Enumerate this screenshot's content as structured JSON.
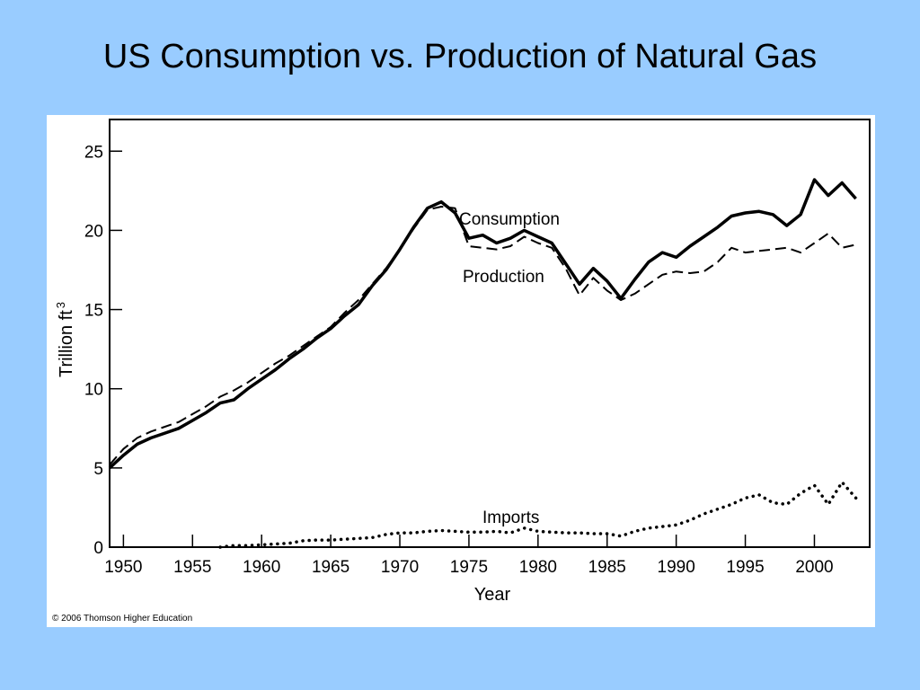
{
  "slide": {
    "title": "US Consumption vs. Production of Natural Gas"
  },
  "figure": {
    "copyright": "© 2006 Thomson Higher Education"
  },
  "chart_data": {
    "type": "line",
    "title": "",
    "xlabel": "Year",
    "ylabel": "Trillion ft",
    "ylabel_superscript": "3",
    "xlim": [
      1949,
      2004
    ],
    "ylim": [
      0,
      27
    ],
    "xticks": [
      1950,
      1955,
      1960,
      1965,
      1970,
      1975,
      1980,
      1985,
      1990,
      1995,
      2000
    ],
    "yticks": [
      0,
      5,
      10,
      15,
      20,
      25
    ],
    "grid": false,
    "legend": "inline labels",
    "series": [
      {
        "name": "Consumption",
        "style": "solid",
        "color": "#000000",
        "x": [
          1949,
          1950,
          1951,
          1952,
          1953,
          1954,
          1955,
          1956,
          1957,
          1958,
          1959,
          1960,
          1961,
          1962,
          1963,
          1964,
          1965,
          1966,
          1967,
          1968,
          1969,
          1970,
          1971,
          1972,
          1973,
          1974,
          1975,
          1976,
          1977,
          1978,
          1979,
          1980,
          1981,
          1982,
          1983,
          1984,
          1985,
          1986,
          1987,
          1988,
          1989,
          1990,
          1991,
          1992,
          1993,
          1994,
          1995,
          1996,
          1997,
          1998,
          1999,
          2000,
          2001,
          2002,
          2003
        ],
        "values": [
          5.0,
          5.8,
          6.5,
          6.9,
          7.2,
          7.5,
          8.0,
          8.5,
          9.1,
          9.3,
          10.0,
          10.6,
          11.2,
          11.9,
          12.5,
          13.2,
          13.8,
          14.6,
          15.3,
          16.5,
          17.5,
          18.8,
          20.2,
          21.4,
          21.8,
          21.1,
          19.5,
          19.7,
          19.2,
          19.5,
          20.0,
          19.6,
          19.2,
          17.9,
          16.6,
          17.6,
          16.8,
          15.7,
          16.9,
          18.0,
          18.6,
          18.3,
          19.0,
          19.6,
          20.2,
          20.9,
          21.1,
          21.2,
          21.0,
          20.3,
          21.0,
          23.2,
          22.2,
          23.0,
          22.0
        ]
      },
      {
        "name": "Production",
        "style": "dashed",
        "color": "#000000",
        "x": [
          1949,
          1950,
          1951,
          1952,
          1953,
          1954,
          1955,
          1956,
          1957,
          1958,
          1959,
          1960,
          1961,
          1962,
          1963,
          1964,
          1965,
          1966,
          1967,
          1968,
          1969,
          1970,
          1971,
          1972,
          1973,
          1974,
          1975,
          1976,
          1977,
          1978,
          1979,
          1980,
          1981,
          1982,
          1983,
          1984,
          1985,
          1986,
          1987,
          1988,
          1989,
          1990,
          1991,
          1992,
          1993,
          1994,
          1995,
          1996,
          1997,
          1998,
          1999,
          2000,
          2001,
          2002,
          2003
        ],
        "values": [
          5.2,
          6.2,
          6.9,
          7.3,
          7.6,
          7.9,
          8.4,
          8.9,
          9.5,
          9.9,
          10.4,
          11.0,
          11.6,
          12.1,
          12.7,
          13.3,
          13.9,
          14.8,
          15.6,
          16.6,
          17.6,
          18.8,
          20.1,
          21.3,
          21.5,
          21.4,
          19.0,
          18.9,
          18.8,
          19.0,
          19.6,
          19.2,
          18.9,
          17.6,
          15.9,
          17.0,
          16.2,
          15.6,
          16.0,
          16.6,
          17.2,
          17.4,
          17.3,
          17.4,
          18.0,
          18.9,
          18.6,
          18.7,
          18.8,
          18.9,
          18.6,
          19.2,
          19.8,
          18.9,
          19.1
        ]
      },
      {
        "name": "Imports",
        "style": "dotted",
        "color": "#000000",
        "x": [
          1957,
          1958,
          1959,
          1960,
          1961,
          1962,
          1963,
          1964,
          1965,
          1966,
          1967,
          1968,
          1969,
          1970,
          1971,
          1972,
          1973,
          1974,
          1975,
          1976,
          1977,
          1978,
          1979,
          1980,
          1981,
          1982,
          1983,
          1984,
          1985,
          1986,
          1987,
          1988,
          1989,
          1990,
          1991,
          1992,
          1993,
          1994,
          1995,
          1996,
          1997,
          1998,
          1999,
          2000,
          2001,
          2002,
          2003
        ],
        "values": [
          0.0,
          0.1,
          0.1,
          0.15,
          0.2,
          0.25,
          0.4,
          0.45,
          0.45,
          0.5,
          0.55,
          0.6,
          0.8,
          0.9,
          0.9,
          1.0,
          1.05,
          1.0,
          0.95,
          0.95,
          1.0,
          0.9,
          1.2,
          1.0,
          0.95,
          0.9,
          0.9,
          0.85,
          0.85,
          0.7,
          1.0,
          1.2,
          1.3,
          1.4,
          1.7,
          2.1,
          2.4,
          2.7,
          3.1,
          3.3,
          2.8,
          2.7,
          3.4,
          3.9,
          2.7,
          4.1,
          3.1
        ]
      }
    ],
    "annotations": [
      "Consumption",
      "Production",
      "Imports"
    ]
  }
}
